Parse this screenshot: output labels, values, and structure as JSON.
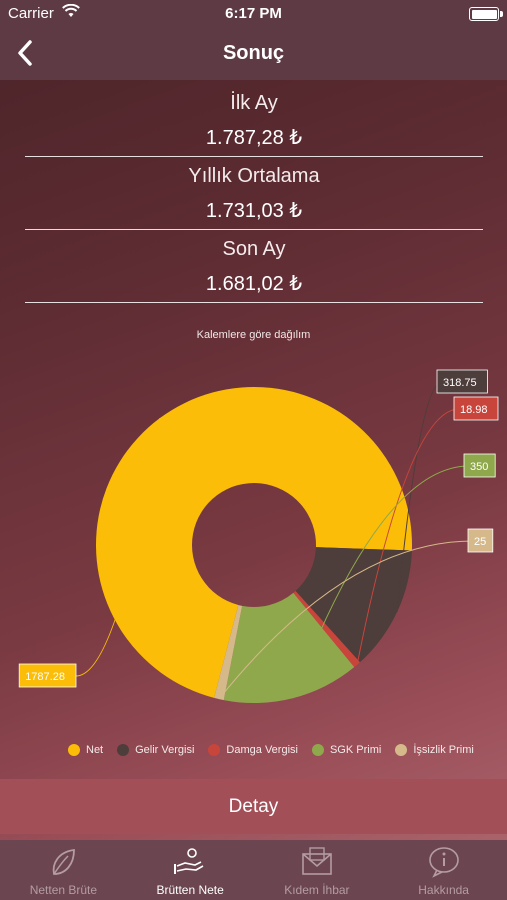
{
  "status_bar": {
    "carrier": "Carrier",
    "time": "6:17 PM"
  },
  "nav": {
    "title": "Sonuç"
  },
  "results": [
    {
      "label": "İlk Ay",
      "value": "1.787,28 ₺"
    },
    {
      "label": "Yıllık Ortalama",
      "value": "1.731,03 ₺"
    },
    {
      "label": "Son Ay",
      "value": "1.681,02 ₺"
    }
  ],
  "chart_data": {
    "type": "pie",
    "title": "Kalemlere göre dağılım",
    "series": [
      {
        "name": "Net",
        "value": 1787.28,
        "label": "1787.28",
        "color": "#fbbd08"
      },
      {
        "name": "Gelir Vergisi",
        "value": 318.75,
        "label": "318.75",
        "color": "#4d3d3b"
      },
      {
        "name": "Damga Vergisi",
        "value": 18.98,
        "label": "18.98",
        "color": "#c8453c"
      },
      {
        "name": "SGK Primi",
        "value": 350,
        "label": "350",
        "color": "#8fa84c"
      },
      {
        "name": "İşsizlik Primi",
        "value": 25,
        "label": "25",
        "color": "#d6b98a"
      }
    ],
    "legend_position": "bottom"
  },
  "detail_button": {
    "label": "Detay"
  },
  "tabs": [
    {
      "label": "Netten Brüte",
      "icon": "leaf-icon",
      "active": false
    },
    {
      "label": "Brütten Nete",
      "icon": "hand-money-icon",
      "active": true
    },
    {
      "label": "Kıdem İhbar",
      "icon": "envelope-icon",
      "active": false
    },
    {
      "label": "Hakkında",
      "icon": "info-icon",
      "active": false
    }
  ]
}
